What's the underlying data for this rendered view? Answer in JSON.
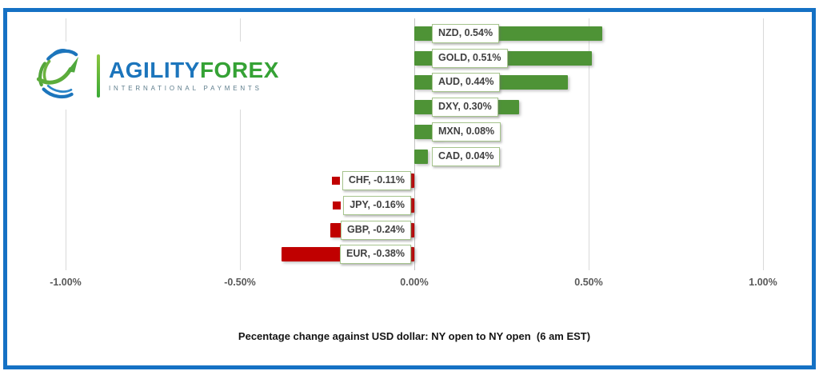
{
  "logo": {
    "brand_primary": "AGILITY",
    "brand_secondary": "FOREX",
    "tagline": "INTERNATIONAL PAYMENTS",
    "icon": "globe-swoosh-arrow",
    "colors": {
      "blue": "#1C75BC",
      "green": "#6CB33F",
      "tagline_gray": "#5E7D8C"
    }
  },
  "chart_data": {
    "type": "bar",
    "orientation": "horizontal",
    "title": "Pecentage change against USD dollar: NY open to NY open  (6 am EST)",
    "categories": [
      "NZD",
      "GOLD",
      "AUD",
      "DXY",
      "MXN",
      "CAD",
      "CHF",
      "JPY",
      "GBP",
      "EUR"
    ],
    "values": [
      0.54,
      0.51,
      0.44,
      0.3,
      0.08,
      0.04,
      -0.11,
      -0.16,
      -0.24,
      -0.38
    ],
    "data_labels": [
      "NZD, 0.54%",
      "GOLD, 0.51%",
      "AUD, 0.44%",
      "DXY, 0.30%",
      "MXN, 0.08%",
      "CAD, 0.04%",
      "CHF, -0.11%",
      "JPY, -0.16%",
      "GBP, -0.24%",
      "EUR, -0.38%"
    ],
    "x_ticks": [
      {
        "value": -1.0,
        "label": "-1.00%"
      },
      {
        "value": -0.5,
        "label": "-0.50%"
      },
      {
        "value": 0.0,
        "label": "0.00%"
      },
      {
        "value": 0.5,
        "label": "0.50%"
      },
      {
        "value": 1.0,
        "label": "1.00%"
      }
    ],
    "xlim": [
      -1.12,
      1.12
    ],
    "grid": true,
    "legend": "none",
    "data_label_style": "inside-base boxed with legend key",
    "colors": {
      "positive": "#4E9336",
      "negative": "#C00000",
      "gridline": "#D9D9D9",
      "zero_line": "#C2C2C2",
      "label_border": "#A6C48D",
      "label_text": "#404040",
      "tick_text": "#595959",
      "frame_border": "#1571C4"
    }
  }
}
